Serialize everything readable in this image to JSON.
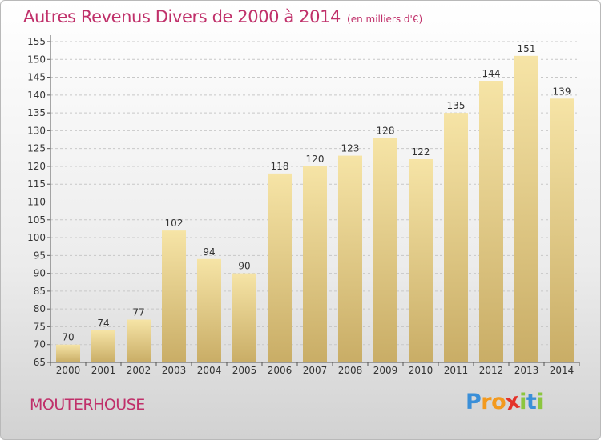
{
  "header": {
    "title": "Autres Revenus Divers de 2000 à 2014",
    "unit": "(en milliers d'€)"
  },
  "footer": {
    "place": "MOUTERHOUSE",
    "logo_letters": [
      "P",
      "r",
      "o",
      "x",
      "i",
      "t",
      "i"
    ]
  },
  "colors": {
    "title": "#c0306a",
    "bar_light": "#f6e4a6",
    "bar_dark": "#c9ad66",
    "axis": "#555555",
    "grid": "#c8c8c8"
  },
  "chart_data": {
    "type": "bar",
    "title": "Autres Revenus Divers de 2000 à 2014",
    "subtitle": "(en milliers d'€)",
    "xlabel": "",
    "ylabel": "",
    "categories": [
      "2000",
      "2001",
      "2002",
      "2003",
      "2004",
      "2005",
      "2006",
      "2007",
      "2008",
      "2009",
      "2010",
      "2011",
      "2012",
      "2013",
      "2014"
    ],
    "values": [
      70,
      74,
      77,
      102,
      94,
      90,
      118,
      120,
      123,
      128,
      122,
      135,
      144,
      151,
      139
    ],
    "ylim": [
      65,
      155
    ],
    "yticks": [
      65,
      70,
      75,
      80,
      85,
      90,
      95,
      100,
      105,
      110,
      115,
      120,
      125,
      130,
      135,
      140,
      145,
      150,
      155
    ],
    "grid": true,
    "legend": "none"
  }
}
